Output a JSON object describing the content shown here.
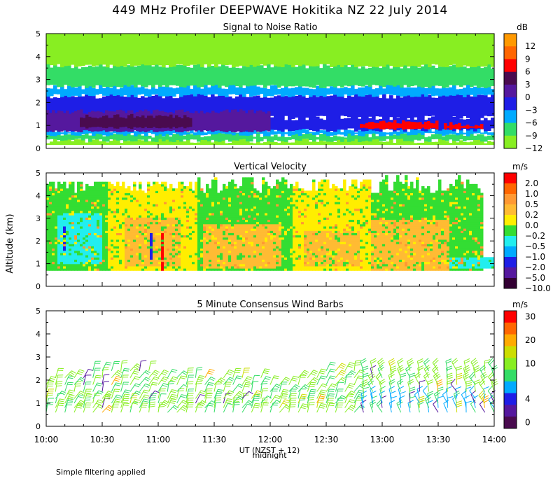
{
  "title": "449 MHz Profiler DEEPWAVE Hokitika NZ 22 July 2014",
  "footnote": "Simple filtering applied",
  "xaxis": {
    "label": "UT  (NZST + 12)",
    "midnight_label": "midnight",
    "ticks": [
      "10:00",
      "10:30",
      "11:00",
      "11:30",
      "12:00",
      "12:30",
      "13:00",
      "13:30",
      "14:00"
    ],
    "range_hours": [
      10,
      14
    ]
  },
  "yaxis": {
    "label": "Altitude (km)",
    "ticks": [
      "0",
      "1",
      "2",
      "3",
      "4",
      "5"
    ],
    "range_km": [
      0,
      5
    ]
  },
  "chart_data": [
    {
      "type": "heatmap",
      "title": "Signal to Noise Ratio",
      "unit": "dB",
      "colorbar": [
        {
          "label": "12",
          "color": "#ff9900"
        },
        {
          "label": "9",
          "color": "#ff6600"
        },
        {
          "label": "6",
          "color": "#ff0000"
        },
        {
          "label": "3",
          "color": "#4a0b4f"
        },
        {
          "label": "0",
          "color": "#55189e"
        },
        {
          "label": "−3",
          "color": "#1e1ee6"
        },
        {
          "label": "−6",
          "color": "#00aaff"
        },
        {
          "label": "−9",
          "color": "#33dd66"
        },
        {
          "label": "−12",
          "color": "#88ee22"
        }
      ],
      "bands_km": [
        {
          "from": 0.15,
          "to": 0.35,
          "color": "#88ee22"
        },
        {
          "from": 0.35,
          "to": 0.6,
          "color": "#33dd66"
        },
        {
          "from": 0.6,
          "to": 0.8,
          "color": "#00aaff"
        },
        {
          "from": 0.8,
          "to": 1.35,
          "color": "#1e1ee6"
        },
        {
          "from": 1.35,
          "to": 2.3,
          "color": "#1e1ee6"
        },
        {
          "from": 2.3,
          "to": 2.7,
          "color": "#00aaff"
        },
        {
          "from": 2.7,
          "to": 3.6,
          "color": "#33dd66"
        },
        {
          "from": 3.6,
          "to": 5.0,
          "color": "#88ee22"
        }
      ],
      "patches": [
        {
          "t0": 10.0,
          "t1": 12.0,
          "z0": 0.75,
          "z1": 1.6,
          "color": "#55189e"
        },
        {
          "t0": 10.3,
          "t1": 11.3,
          "z0": 0.9,
          "z1": 1.4,
          "color": "#4a0b4f"
        },
        {
          "t0": 12.8,
          "t1": 13.5,
          "z0": 0.85,
          "z1": 1.15,
          "color": "#ff0000"
        },
        {
          "t0": 13.55,
          "t1": 13.9,
          "z0": 0.85,
          "z1": 1.05,
          "color": "#ff0000"
        }
      ]
    },
    {
      "type": "heatmap",
      "title": "Vertical Velocity",
      "unit": "m/s",
      "colorbar": [
        {
          "label": "2.0",
          "color": "#ff0000"
        },
        {
          "label": "1.0",
          "color": "#ff6600"
        },
        {
          "label": "0.5",
          "color": "#ff9933"
        },
        {
          "label": "0.2",
          "color": "#ffbb33"
        },
        {
          "label": "0.0",
          "color": "#ffee00"
        },
        {
          "label": "−0.2",
          "color": "#33dd33"
        },
        {
          "label": "−0.5",
          "color": "#22eeee"
        },
        {
          "label": "−1.0",
          "color": "#00aaff"
        },
        {
          "label": "−2.0",
          "color": "#1e1ee6"
        },
        {
          "label": "−5.0",
          "color": "#55189e"
        },
        {
          "label": "−10.0",
          "color": "#330033"
        }
      ],
      "data_range_km": [
        0.7,
        5.0
      ],
      "patches": [
        {
          "t0": 10.0,
          "t1": 10.55,
          "z0": 0.7,
          "z1": 4.6,
          "color": "#33dd33"
        },
        {
          "t0": 10.55,
          "t1": 11.35,
          "z0": 0.7,
          "z1": 4.6,
          "color": "#ffee00"
        },
        {
          "t0": 11.35,
          "t1": 12.2,
          "z0": 0.7,
          "z1": 4.8,
          "color": "#33dd33"
        },
        {
          "t0": 12.2,
          "t1": 12.9,
          "z0": 0.7,
          "z1": 4.7,
          "color": "#ffee00"
        },
        {
          "t0": 12.9,
          "t1": 13.9,
          "z0": 0.7,
          "z1": 4.9,
          "color": "#33dd33"
        },
        {
          "t0": 10.1,
          "t1": 10.5,
          "z0": 1.0,
          "z1": 3.2,
          "color": "#22eeee"
        },
        {
          "t0": 10.7,
          "t1": 11.2,
          "z0": 0.9,
          "z1": 3.0,
          "color": "#ffbb33"
        },
        {
          "t0": 11.4,
          "t1": 12.1,
          "z0": 0.8,
          "z1": 2.8,
          "color": "#ffbb33"
        },
        {
          "t0": 12.3,
          "t1": 12.8,
          "z0": 0.9,
          "z1": 2.5,
          "color": "#ffbb33"
        },
        {
          "t0": 12.9,
          "t1": 13.6,
          "z0": 0.7,
          "z1": 2.9,
          "color": "#ffbb33"
        },
        {
          "t0": 13.6,
          "t1": 14.0,
          "z0": 0.8,
          "z1": 1.3,
          "color": "#22eeee"
        },
        {
          "t0": 11.03,
          "t1": 11.06,
          "z0": 0.7,
          "z1": 2.4,
          "color": "#ff0000"
        },
        {
          "t0": 10.15,
          "t1": 10.17,
          "z0": 1.6,
          "z1": 2.7,
          "color": "#1e1ee6"
        },
        {
          "t0": 10.92,
          "t1": 10.94,
          "z0": 1.2,
          "z1": 2.4,
          "color": "#1e1ee6"
        }
      ]
    },
    {
      "type": "barbs",
      "title": "5 Minute Consensus Wind Barbs",
      "unit": "m/s",
      "colorbar": [
        {
          "label": "30",
          "color": "#ff0000",
          "value": 30
        },
        {
          "label": "",
          "color": "#ff6600",
          "value": 25
        },
        {
          "label": "20",
          "color": "#ffaa00",
          "value": 20
        },
        {
          "label": "",
          "color": "#ccdd00",
          "value": 15
        },
        {
          "label": "10",
          "color": "#88ee22",
          "value": 10
        },
        {
          "label": "",
          "color": "#33dd66",
          "value": 7
        },
        {
          "label": "",
          "color": "#00aaff",
          "value": 5
        },
        {
          "label": "4",
          "color": "#1e1ee6",
          "value": 4
        },
        {
          "label": "",
          "color": "#55189e",
          "value": 2
        },
        {
          "label": "0",
          "color": "#4a0b4f",
          "value": 0
        }
      ],
      "time_step_min": 5,
      "altitudes_km": [
        0.6,
        0.8,
        1.0,
        1.2,
        1.5,
        1.8,
        2.1,
        2.4
      ],
      "top_km_by_hour": [
        {
          "t": 10.0,
          "top": 2.0
        },
        {
          "t": 10.5,
          "top": 2.6
        },
        {
          "t": 12.0,
          "top": 2.0
        },
        {
          "t": 13.0,
          "top": 2.7
        },
        {
          "t": 14.0,
          "top": 2.6
        }
      ]
    }
  ]
}
